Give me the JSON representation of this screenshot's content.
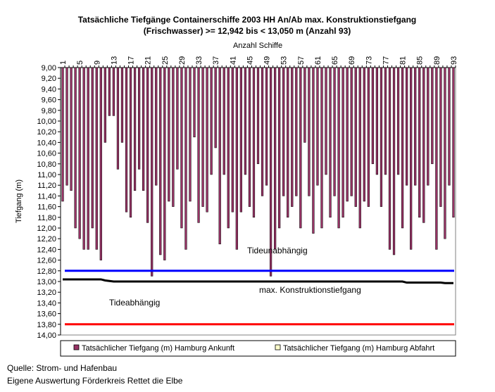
{
  "chart_data": {
    "type": "bar",
    "title_line1": "Tatsächliche Tiefgänge Containerschiffe 2003 HH An/Ab max. Konstruktionstiefgang",
    "title_line2": "(Frischwasser) >= 12,942 bis < 13,050 m (Anzahl 93)",
    "xlabel": "Anzahl Schiffe",
    "ylabel": "Tiefgang (m)",
    "ylim": [
      9.0,
      14.0
    ],
    "y_inverted": true,
    "y_tick_step": 0.2,
    "y_tick_labels": [
      "9,00",
      "9,20",
      "9,40",
      "9,60",
      "9,80",
      "10,00",
      "10,20",
      "10,40",
      "10,60",
      "10,80",
      "11,00",
      "11,20",
      "11,40",
      "11,60",
      "11,80",
      "12,00",
      "12,20",
      "12,40",
      "12,60",
      "12,80",
      "13,00",
      "13,20",
      "13,40",
      "13,60",
      "13,80",
      "14,00"
    ],
    "x_tick_labels": [
      "1",
      "5",
      "9",
      "13",
      "17",
      "21",
      "25",
      "29",
      "33",
      "37",
      "41",
      "45",
      "49",
      "53",
      "57",
      "61",
      "65",
      "69",
      "73",
      "77",
      "81",
      "85",
      "89",
      "93"
    ],
    "x_tick_values": [
      1,
      5,
      9,
      13,
      17,
      21,
      25,
      29,
      33,
      37,
      41,
      45,
      49,
      53,
      57,
      61,
      65,
      69,
      73,
      77,
      81,
      85,
      89,
      93
    ],
    "ship_count": 93,
    "series": [
      {
        "name": "Tatsächlicher Tiefgang (m) Hamburg Ankunft",
        "color": "#993366",
        "values": [
          11.5,
          11.2,
          11.3,
          12.0,
          12.2,
          12.4,
          12.4,
          12.0,
          12.4,
          12.6,
          10.4,
          9.9,
          9.9,
          10.9,
          10.4,
          11.7,
          11.8,
          11.3,
          10.9,
          11.3,
          11.9,
          12.9,
          11.2,
          12.5,
          12.6,
          11.5,
          11.6,
          10.9,
          12.0,
          12.4,
          11.5,
          10.3,
          11.9,
          11.6,
          11.7,
          11.0,
          10.5,
          12.3,
          11.0,
          12.0,
          11.7,
          12.4,
          11.7,
          11.0,
          11.6,
          11.8,
          10.8,
          11.4,
          11.2,
          12.9,
          12.4,
          12.0,
          11.4,
          11.8,
          11.6,
          11.4,
          12.0,
          10.4,
          11.4,
          12.1,
          11.2,
          12.0,
          11.0,
          11.8,
          11.4,
          12.0,
          11.8,
          11.5,
          11.4,
          11.6,
          12.0,
          11.5,
          11.6,
          10.8,
          11.0,
          11.6,
          11.0,
          12.4,
          12.5,
          11.0,
          12.0,
          11.2,
          12.4,
          11.2,
          11.8,
          11.9,
          11.2,
          10.8,
          12.4,
          11.6,
          12.2,
          11.2,
          11.8
        ],
        "extra_note": ""
      },
      {
        "name": "Tatsächlicher Tiefgang (m) Hamburg Abfahrt",
        "color": "#ffffcc",
        "values": []
      }
    ],
    "reference_lines": [
      {
        "name": "Tideunabhängig",
        "value": 12.8,
        "color": "#0000ff"
      },
      {
        "name": "Tideabhängig",
        "value": 13.8,
        "color": "#ff0000"
      }
    ],
    "design_draft_line": {
      "name": "max. Konstruktionstiefgang",
      "color": "#000000",
      "values": [
        12.96,
        12.96,
        12.96,
        12.96,
        12.96,
        12.96,
        12.96,
        12.96,
        12.96,
        12.96,
        12.98,
        12.99,
        13.0,
        13.0,
        13.0,
        13.0,
        13.0,
        13.0,
        13.0,
        13.0,
        13.0,
        13.0,
        13.0,
        13.0,
        13.0,
        13.0,
        13.0,
        13.0,
        13.0,
        13.0,
        13.0,
        13.0,
        13.0,
        13.0,
        13.0,
        13.0,
        13.0,
        13.0,
        13.0,
        13.0,
        13.0,
        13.0,
        13.0,
        13.0,
        13.0,
        13.0,
        13.0,
        13.0,
        13.0,
        13.0,
        13.0,
        13.0,
        13.0,
        13.0,
        13.0,
        13.0,
        13.0,
        13.0,
        13.0,
        13.0,
        13.0,
        13.0,
        13.0,
        13.0,
        13.0,
        13.0,
        13.0,
        13.0,
        13.0,
        13.0,
        13.0,
        13.0,
        13.0,
        13.0,
        13.0,
        13.0,
        13.0,
        13.0,
        13.0,
        13.0,
        13.0,
        13.02,
        13.02,
        13.02,
        13.02,
        13.02,
        13.02,
        13.02,
        13.02,
        13.02,
        13.03,
        13.03,
        13.03
      ]
    },
    "annotations": {
      "tideunabhaengig": "Tideunabhängig",
      "tideabhaengig": "Tideabhängig",
      "konstruktion": "max. Konstruktionstiefgang"
    },
    "legend_position": "bottom",
    "grid": false
  },
  "source": {
    "line1": "Quelle: Strom- und Hafenbau",
    "line2": "Eigene Auswertung Förderkreis Rettet die Elbe"
  }
}
